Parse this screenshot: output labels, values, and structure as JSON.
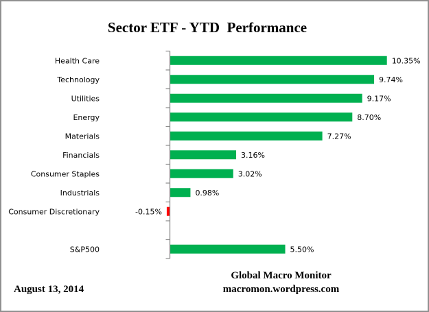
{
  "page": {
    "footer_left": "August 13, 2014",
    "footer_right_line1": "Global Macro Monitor",
    "footer_right_line2": "macromon.wordpress.com"
  },
  "colors": {
    "positive_bar": "#00B050",
    "negative_bar": "#FF0000",
    "axis": "#8C8C8C",
    "text": "#000000"
  },
  "chart_data": {
    "type": "bar",
    "orientation": "horizontal",
    "title": "Sector ETF - YTD  Performance",
    "xlabel": "",
    "ylabel": "",
    "xlim": [
      -3.5,
      12.5
    ],
    "grid": false,
    "legend": false,
    "categories": [
      "Health Care",
      "Technology",
      "Utilities",
      "Energy",
      "Materials",
      "Financials",
      "Consumer Staples",
      "Industrials",
      "Consumer Discretionary",
      "",
      "S&P500"
    ],
    "values": [
      10.35,
      9.74,
      9.17,
      8.7,
      7.27,
      3.16,
      3.02,
      0.98,
      -0.15,
      null,
      5.5
    ],
    "value_labels": [
      "10.35%",
      "9.74%",
      "9.17%",
      "8.70%",
      "7.27%",
      "3.16%",
      "3.02%",
      "0.98%",
      "-0.15%",
      "",
      "5.50%"
    ]
  }
}
